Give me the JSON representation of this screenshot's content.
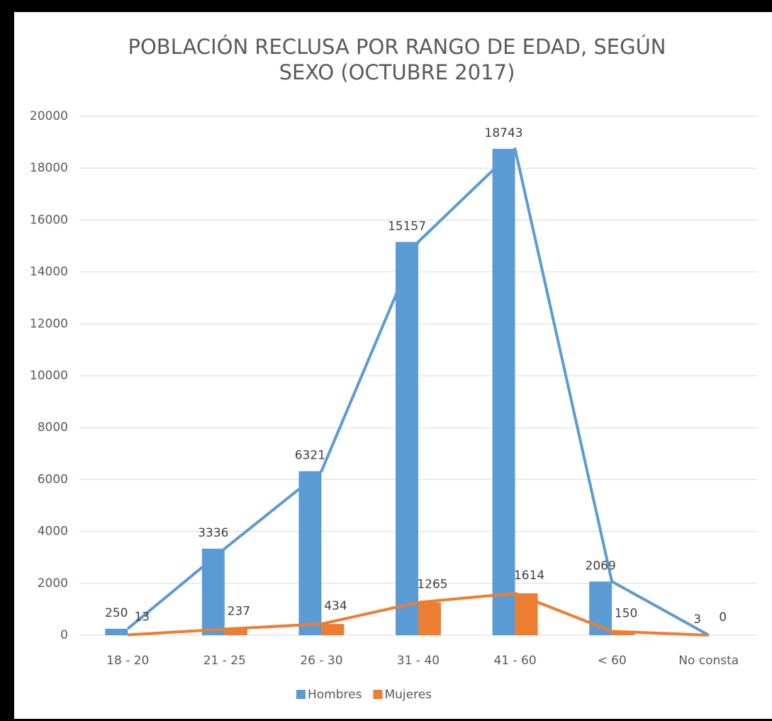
{
  "chart_data": {
    "type": "bar",
    "overlay": "line",
    "title": "POBLACIÓN RECLUSA POR RANGO DE EDAD, SEGÚN SEXO (OCTUBRE 2017)",
    "categories": [
      "18 - 20",
      "21 - 25",
      "26 - 30",
      "31 - 40",
      "41 - 60",
      "< 60",
      "No consta"
    ],
    "series": [
      {
        "name": "Hombres",
        "color": "#5b9bd5",
        "values": [
          250,
          3336,
          6321,
          15157,
          18743,
          2069,
          3
        ]
      },
      {
        "name": "Mujeres",
        "color": "#ed7d31",
        "values": [
          13,
          237,
          434,
          1265,
          1614,
          150,
          0
        ]
      }
    ],
    "ylim": [
      0,
      20000
    ],
    "yticks": [
      0,
      2000,
      4000,
      6000,
      8000,
      10000,
      12000,
      14000,
      16000,
      18000,
      20000
    ],
    "grid": true,
    "legend": "bottom"
  }
}
